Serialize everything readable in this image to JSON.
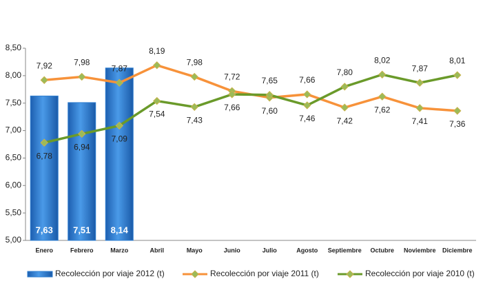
{
  "chart_data": {
    "type": "bar-line",
    "categories": [
      "Enero",
      "Febrero",
      "Marzo",
      "Abril",
      "Mayo",
      "Junio",
      "Julio",
      "Agosto",
      "Septiembre",
      "Octubre",
      "Noviembre",
      "Diciembre"
    ],
    "series": [
      {
        "name": "Recolección por viaje 2012 (t)",
        "type": "bar",
        "color": "#2f7fd0",
        "values": [
          7.63,
          7.51,
          8.14,
          null,
          null,
          null,
          null,
          null,
          null,
          null,
          null,
          null
        ],
        "value_labels": [
          "7,63",
          "7,51",
          "8,14",
          null,
          null,
          null,
          null,
          null,
          null,
          null,
          null,
          null
        ]
      },
      {
        "name": "Recolección por viaje 2011 (t)",
        "type": "line",
        "color": "#f7923a",
        "values": [
          7.92,
          7.98,
          7.87,
          8.19,
          7.98,
          7.72,
          7.6,
          7.66,
          7.42,
          7.62,
          7.41,
          7.36
        ],
        "value_labels": [
          "7,92",
          "7,98",
          "7,87",
          "8,19",
          "7,98",
          "7,72",
          "7,60",
          "7,66",
          "7,42",
          "7,62",
          "7,41",
          "7,36"
        ]
      },
      {
        "name": "Recolección por viaje 2010 (t)",
        "type": "line",
        "color": "#6a9a2a",
        "values": [
          6.78,
          6.94,
          7.09,
          7.54,
          7.43,
          7.66,
          7.65,
          7.46,
          7.8,
          8.02,
          7.87,
          8.01
        ],
        "value_labels": [
          "6,78",
          "6,94",
          "7,09",
          "7,54",
          "7,43",
          "7,66",
          "7,65",
          "7,46",
          "7,80",
          "8,02",
          "7,87",
          "8,01"
        ]
      }
    ],
    "ylim": [
      5,
      8.5
    ],
    "yticks": [
      {
        "value": 5,
        "label": "5,00"
      },
      {
        "value": 5.5,
        "label": "5,50"
      },
      {
        "value": 6,
        "label": "6,00"
      },
      {
        "value": 6.5,
        "label": "6,50"
      },
      {
        "value": 7,
        "label": "7,00"
      },
      {
        "value": 7.5,
        "label": "7,50"
      },
      {
        "value": 8,
        "label": "8,00"
      },
      {
        "value": 8.5,
        "label": "8,50"
      }
    ],
    "legend": "bottom"
  }
}
